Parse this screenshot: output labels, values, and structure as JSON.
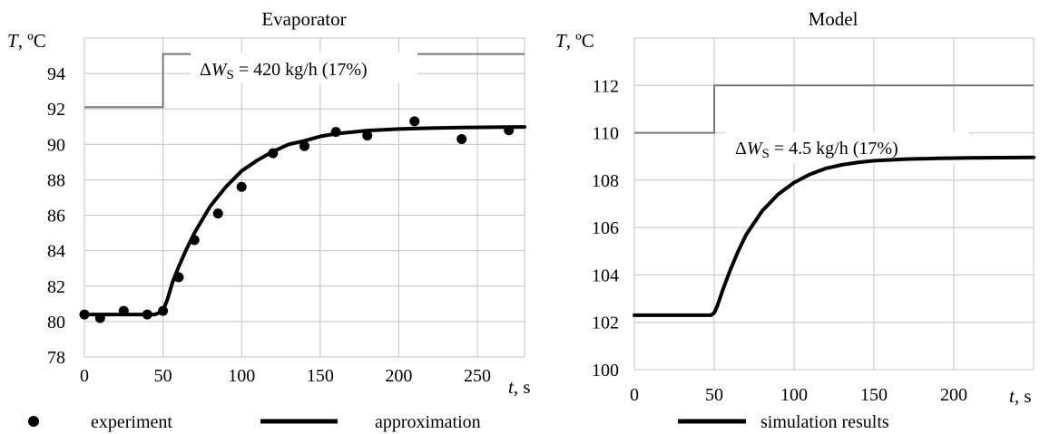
{
  "legend": {
    "experiment": "experiment",
    "approximation": "approximation",
    "simulation": "simulation results"
  },
  "chart_data": [
    {
      "type": "line",
      "title": "Evaporator",
      "ylabel": {
        "italic": "T",
        "rest": ", ºC"
      },
      "xlabel": {
        "italic": "t",
        "rest": ", s"
      },
      "xlim": [
        0,
        280
      ],
      "ylim": [
        78,
        96
      ],
      "xticks": [
        0,
        50,
        100,
        150,
        200,
        250
      ],
      "yticks": [
        78,
        80,
        82,
        84,
        86,
        88,
        90,
        92,
        94
      ],
      "annotation": {
        "delta": "Δ",
        "sym": "W",
        "sub": "S",
        "text": " = 420 kg/h (17%)"
      },
      "series": [
        {
          "name": "experiment",
          "kind": "scatter",
          "x": [
            0,
            10,
            25,
            40,
            50,
            60,
            70,
            85,
            100,
            120,
            140,
            160,
            180,
            210,
            240,
            270
          ],
          "y": [
            80.4,
            80.2,
            80.6,
            80.4,
            80.6,
            82.5,
            84.6,
            86.1,
            87.6,
            89.5,
            89.9,
            90.7,
            90.5,
            91.3,
            90.3,
            90.8
          ]
        },
        {
          "name": "approximation",
          "kind": "line",
          "x": [
            0,
            45,
            50,
            53,
            56,
            60,
            65,
            70,
            80,
            90,
            100,
            110,
            120,
            130,
            140,
            150,
            160,
            180,
            200,
            220,
            240,
            260,
            280
          ],
          "y": [
            80.4,
            80.4,
            80.6,
            81.3,
            82.2,
            83.1,
            84.1,
            85.0,
            86.5,
            87.6,
            88.5,
            89.1,
            89.6,
            90.0,
            90.2,
            90.45,
            90.6,
            90.78,
            90.87,
            90.92,
            90.95,
            90.97,
            90.98
          ]
        },
        {
          "kind": "step",
          "x": [
            0,
            50,
            50,
            280
          ],
          "y": [
            92.1,
            92.1,
            95.1,
            95.1
          ]
        }
      ]
    },
    {
      "type": "line",
      "title": "Model",
      "ylabel": {
        "italic": "T",
        "rest": ", ºC"
      },
      "xlabel": {
        "italic": "t",
        "rest": ", s"
      },
      "xlim": [
        0,
        250
      ],
      "ylim": [
        100,
        114
      ],
      "xticks": [
        0,
        50,
        100,
        150,
        200
      ],
      "yticks": [
        100,
        102,
        104,
        106,
        108,
        110,
        112
      ],
      "annotation": {
        "delta": "Δ",
        "sym": "W",
        "sub": "S",
        "text": " = 4.5 kg/h (17%)"
      },
      "series": [
        {
          "name": "simulation results",
          "kind": "line",
          "x": [
            0,
            48,
            50,
            52,
            55,
            60,
            65,
            70,
            80,
            90,
            100,
            110,
            120,
            130,
            140,
            150,
            170,
            190,
            210,
            230,
            250
          ],
          "y": [
            102.3,
            102.3,
            102.4,
            102.7,
            103.3,
            104.2,
            105.0,
            105.7,
            106.7,
            107.4,
            107.9,
            108.25,
            108.5,
            108.65,
            108.75,
            108.82,
            108.89,
            108.92,
            108.94,
            108.95,
            108.96
          ]
        },
        {
          "kind": "step",
          "x": [
            0,
            50,
            50,
            250
          ],
          "y": [
            110.0,
            110.0,
            112.0,
            112.0
          ]
        }
      ]
    }
  ]
}
